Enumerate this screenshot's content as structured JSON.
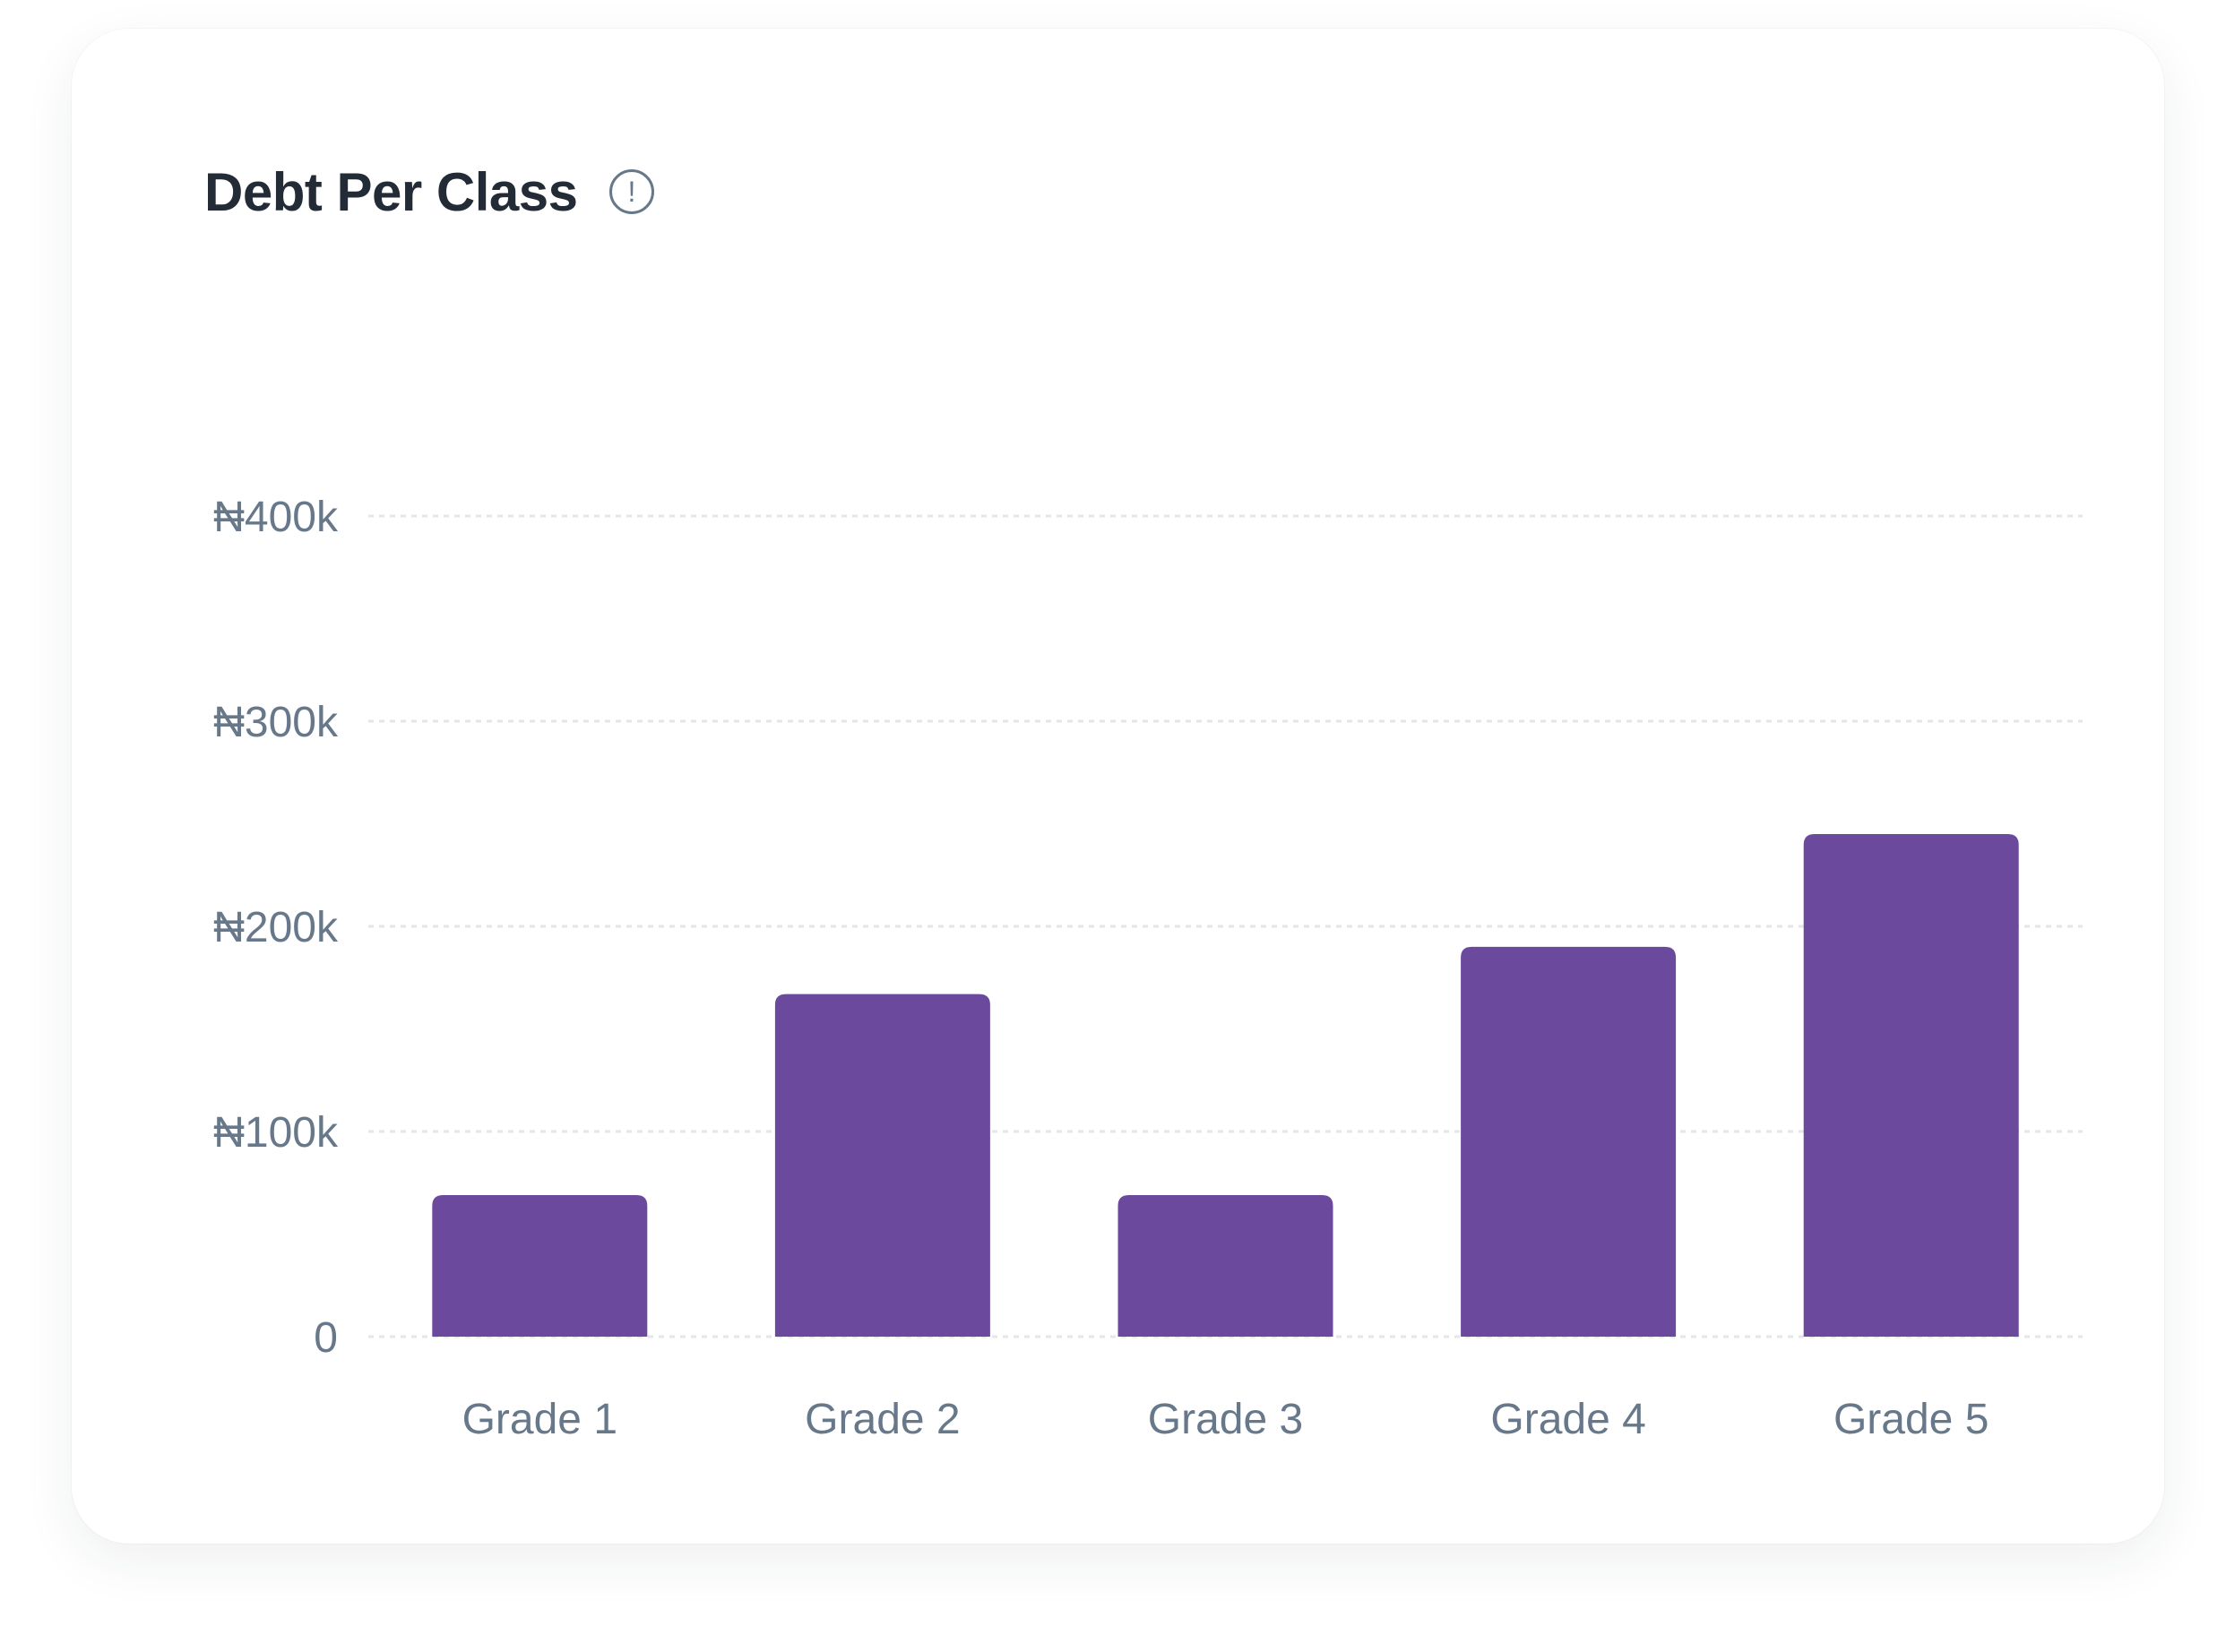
{
  "card": {
    "title": "Debt Per Class",
    "info_icon": "info-circle-icon",
    "info_glyph": "!"
  },
  "colors": {
    "bar": "#6B4A9E",
    "grid": "#E3E6EA",
    "tick_text": "#66788A",
    "title": "#222B36"
  },
  "chart_data": {
    "type": "bar",
    "title": "Debt Per Class",
    "categories": [
      "Grade 1",
      "Grade 2",
      "Grade 3",
      "Grade 4",
      "Grade 5"
    ],
    "values": [
      69000,
      167000,
      69000,
      190000,
      245000
    ],
    "ylim": [
      0,
      400000
    ],
    "yticks": [
      0,
      100000,
      200000,
      300000,
      400000
    ],
    "ytick_labels": [
      "0",
      "₦100k",
      "₦200k",
      "₦300k",
      "₦400k"
    ],
    "xlabel": "",
    "ylabel": "",
    "grid": true,
    "legend": "none"
  }
}
